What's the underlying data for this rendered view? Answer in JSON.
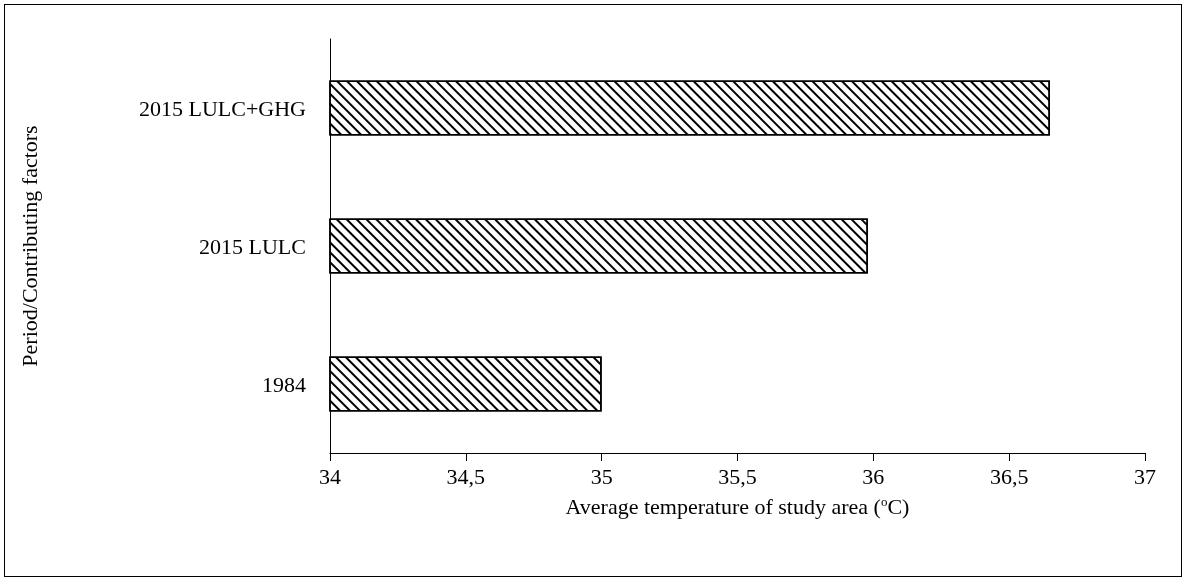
{
  "chart_data": {
    "type": "bar",
    "orientation": "horizontal",
    "xlabel": "Average temperature of study area ($^{o}$C)",
    "ylabel": "Period/Contributing factors",
    "categories": [
      "2015 LULC+GHG",
      "2015 LULC",
      "1984"
    ],
    "values": [
      36.65,
      35.98,
      35.0
    ],
    "color": "#ffffff",
    "xlim": [
      34,
      37
    ],
    "xticks": [
      34,
      {
        "value": 34.5,
        "label": "34,5"
      },
      35,
      {
        "value": 35.5,
        "label": "35,5"
      },
      36,
      {
        "value": 36.5,
        "label": "36,5"
      },
      37
    ],
    "grid": false
  }
}
